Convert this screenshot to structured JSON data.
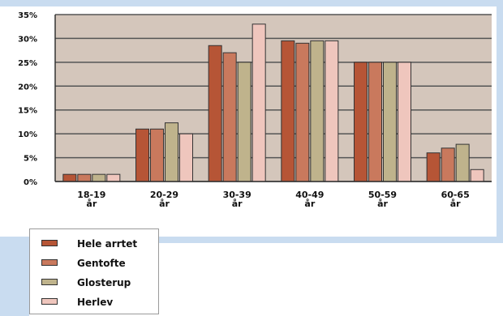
{
  "colors": {
    "background_band": "#c9dcf0",
    "plot_area": "#d4c6bb",
    "gridline": "#555555",
    "axis": "#333333"
  },
  "chart_data": {
    "type": "bar",
    "title": "",
    "xlabel": "",
    "ylabel": "",
    "categories": [
      [
        "18-19",
        "år"
      ],
      [
        "20-29",
        "år"
      ],
      [
        "30-39",
        "år"
      ],
      [
        "40-49",
        "år"
      ],
      [
        "50-59",
        "år"
      ],
      [
        "60-65",
        "år"
      ]
    ],
    "series": [
      {
        "name": "Hele arrtet",
        "color": "#b65536",
        "values": [
          1.5,
          11,
          28.5,
          29.5,
          25,
          6
        ]
      },
      {
        "name": "Gentofte",
        "color": "#c9795d",
        "values": [
          1.5,
          11,
          27,
          29,
          25,
          7
        ]
      },
      {
        "name": "Glosterup",
        "color": "#bfb38c",
        "values": [
          1.5,
          12.3,
          25,
          29.5,
          25,
          7.8
        ]
      },
      {
        "name": "Herlev",
        "color": "#efc6bd",
        "values": [
          1.5,
          10,
          33,
          29.5,
          25,
          2.5
        ]
      }
    ],
    "ylim": [
      0,
      35
    ],
    "yticks": [
      {
        "value": 0,
        "label": "0%"
      },
      {
        "value": 5,
        "label": "5%"
      },
      {
        "value": 10,
        "label": "10%"
      },
      {
        "value": 15,
        "label": "15%"
      },
      {
        "value": 20,
        "label": "20%"
      },
      {
        "value": 25,
        "label": "25%"
      },
      {
        "value": 30,
        "label": "30%"
      },
      {
        "value": 35,
        "label": "35%"
      }
    ],
    "grid": true,
    "legend_position": "bottom-left"
  }
}
